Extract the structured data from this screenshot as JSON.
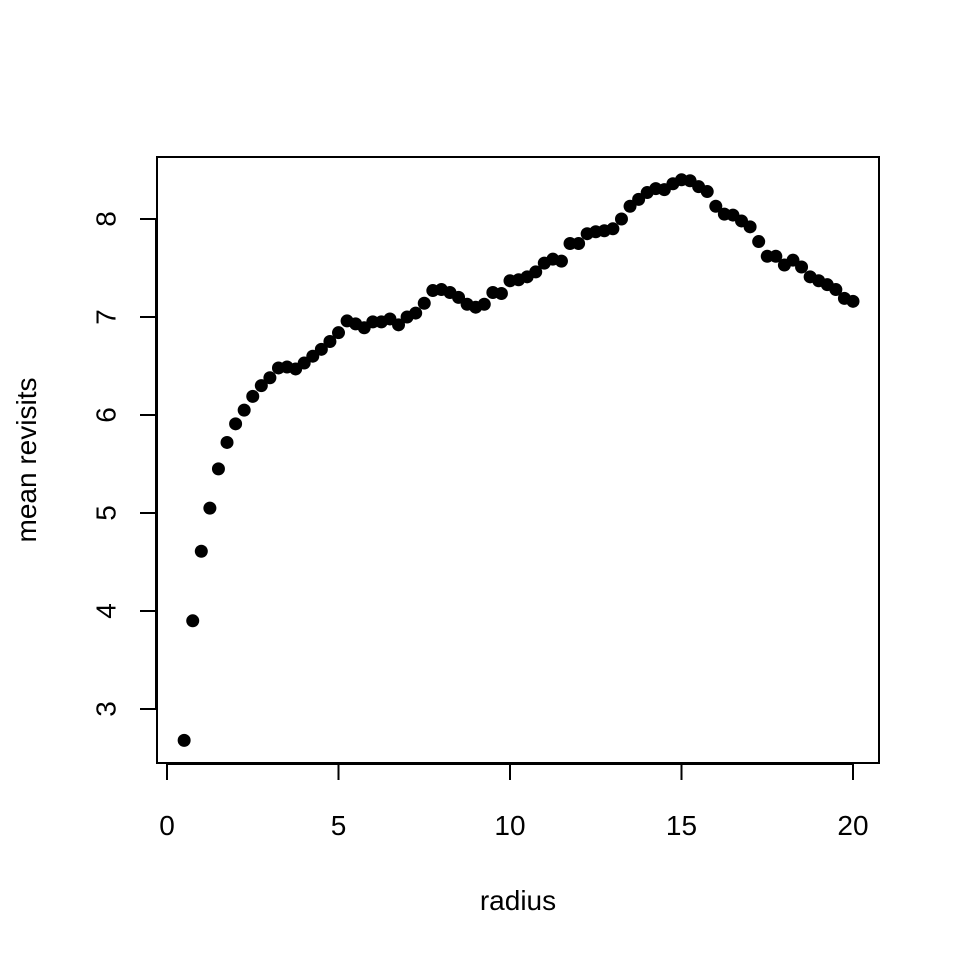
{
  "chart_data": {
    "type": "scatter",
    "title": "",
    "xlabel": "radius",
    "ylabel": "mean revisits",
    "xlim": [
      0.5,
      20
    ],
    "ylim": [
      2.68,
      8.4
    ],
    "xticks": [
      0,
      5,
      10,
      15,
      20
    ],
    "yticks": [
      3,
      4,
      5,
      6,
      7,
      8
    ],
    "xtick_labels": [
      "0",
      "5",
      "10",
      "15",
      "20"
    ],
    "ytick_labels": [
      "3",
      "4",
      "5",
      "6",
      "7",
      "8"
    ],
    "grid": false,
    "legend": "none",
    "marker_color": "#000000",
    "x": [
      0.5,
      0.75,
      1.0,
      1.25,
      1.5,
      1.75,
      2.0,
      2.25,
      2.5,
      2.75,
      3.0,
      3.25,
      3.5,
      3.75,
      4.0,
      4.25,
      4.5,
      4.75,
      5.0,
      5.25,
      5.5,
      5.75,
      6.0,
      6.25,
      6.5,
      6.75,
      7.0,
      7.25,
      7.5,
      7.75,
      8.0,
      8.25,
      8.5,
      8.75,
      9.0,
      9.25,
      9.5,
      9.75,
      10.0,
      10.25,
      10.5,
      10.75,
      11.0,
      11.25,
      11.5,
      11.75,
      12.0,
      12.25,
      12.5,
      12.75,
      13.0,
      13.25,
      13.5,
      13.75,
      14.0,
      14.25,
      14.5,
      14.75,
      15.0,
      15.25,
      15.5,
      15.75,
      16.0,
      16.25,
      16.5,
      16.75,
      17.0,
      17.25,
      17.5,
      17.75,
      18.0,
      18.25,
      18.5,
      18.75,
      19.0,
      19.25,
      19.5,
      19.75,
      20.0
    ],
    "y": [
      2.68,
      3.9,
      4.61,
      5.05,
      5.45,
      5.72,
      5.91,
      6.05,
      6.19,
      6.3,
      6.38,
      6.48,
      6.49,
      6.47,
      6.53,
      6.6,
      6.67,
      6.75,
      6.84,
      6.96,
      6.93,
      6.89,
      6.95,
      6.95,
      6.98,
      6.92,
      7.0,
      7.04,
      7.14,
      7.27,
      7.28,
      7.25,
      7.2,
      7.13,
      7.1,
      7.13,
      7.25,
      7.24,
      7.37,
      7.38,
      7.41,
      7.46,
      7.55,
      7.59,
      7.57,
      7.75,
      7.75,
      7.85,
      7.87,
      7.88,
      7.9,
      8.0,
      8.13,
      8.2,
      8.27,
      8.31,
      8.3,
      8.36,
      8.4,
      8.39,
      8.33,
      8.28,
      8.13,
      8.05,
      8.04,
      7.98,
      7.92,
      7.77,
      7.62,
      7.62,
      7.53,
      7.58,
      7.51,
      7.41,
      7.37,
      7.33,
      7.28,
      7.19,
      7.16
    ]
  }
}
